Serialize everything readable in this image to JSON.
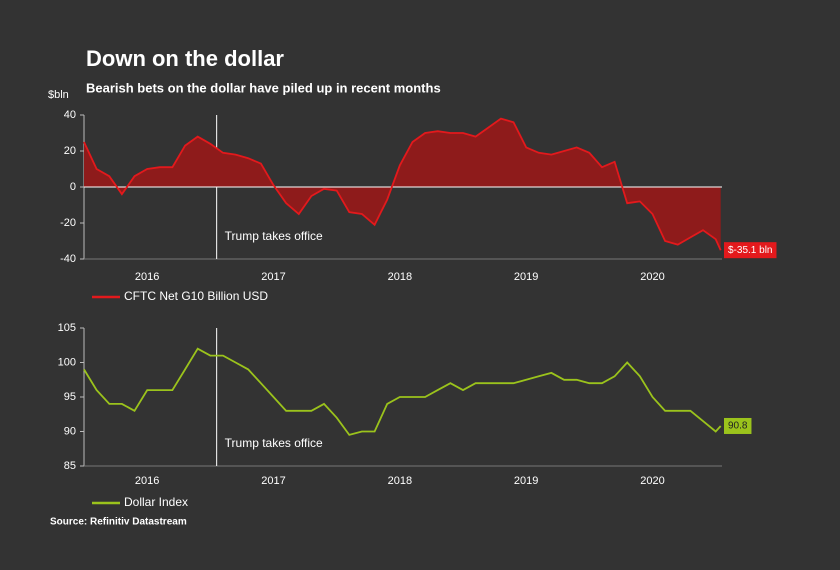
{
  "title": "Down on the dollar",
  "subtitle": "Bearish bets on the dollar have piled up in recent months",
  "source": "Source: Refinitiv Datastream",
  "chart_data": [
    {
      "type": "area",
      "y_label": "$bln",
      "x": [
        2016.0,
        2016.1,
        2016.2,
        2016.3,
        2016.4,
        2016.5,
        2016.6,
        2016.7,
        2016.8,
        2016.9,
        2017.0,
        2017.1,
        2017.2,
        2017.3,
        2017.4,
        2017.5,
        2017.6,
        2017.7,
        2017.8,
        2017.9,
        2018.0,
        2018.1,
        2018.2,
        2018.3,
        2018.4,
        2018.5,
        2018.6,
        2018.7,
        2018.8,
        2018.9,
        2019.0,
        2019.1,
        2019.2,
        2019.3,
        2019.4,
        2019.5,
        2019.6,
        2019.7,
        2019.8,
        2019.9,
        2020.0,
        2020.1,
        2020.2,
        2020.3,
        2020.4,
        2020.5,
        2020.6,
        2020.7,
        2020.8,
        2020.9,
        2021.0,
        2021.04
      ],
      "xlim": [
        2016,
        2021.05
      ],
      "xticks": [
        {
          "value": 2016.5,
          "label": "2016"
        },
        {
          "value": 2017.5,
          "label": "2017"
        },
        {
          "value": 2018.5,
          "label": "2018"
        },
        {
          "value": 2019.5,
          "label": "2019"
        },
        {
          "value": 2020.5,
          "label": "2020"
        }
      ],
      "ylim": [
        -40,
        40
      ],
      "yticks": [
        -40,
        -20,
        0,
        20,
        40
      ],
      "annotation": {
        "text": "Trump takes office",
        "x": 2017.05
      },
      "series": [
        {
          "name": "CFTC Net G10 Billion USD",
          "color": "#e3191c",
          "fill": "#8e1b1b",
          "values": [
            25,
            10,
            6,
            -4,
            6,
            10,
            11,
            11,
            23,
            28,
            24,
            19,
            18,
            16,
            13,
            1,
            -9,
            -15,
            -5,
            -1,
            -2,
            -14,
            -15,
            -21,
            -7,
            12,
            25,
            30,
            31,
            30,
            30,
            28,
            33,
            38,
            36,
            22,
            19,
            18,
            20,
            22,
            19,
            11,
            14,
            -9,
            -8,
            -15,
            -30,
            -32,
            -28,
            -24,
            -29,
            -35.1
          ],
          "value_labels": [
            null,
            null,
            null,
            null,
            null,
            null,
            null,
            null,
            null,
            null,
            null,
            null,
            null,
            null,
            null,
            null,
            null,
            null,
            null,
            null,
            null,
            null,
            null,
            null,
            null,
            null,
            null,
            null,
            null,
            null,
            null,
            null,
            null,
            null,
            null,
            null,
            null,
            null,
            null,
            null,
            null,
            null,
            null,
            null,
            null,
            null,
            null,
            null,
            null,
            null,
            null,
            "$-35.1 bln"
          ]
        }
      ]
    },
    {
      "type": "line",
      "x": [
        2016.0,
        2016.1,
        2016.2,
        2016.3,
        2016.4,
        2016.5,
        2016.6,
        2016.7,
        2016.8,
        2016.9,
        2017.0,
        2017.1,
        2017.2,
        2017.3,
        2017.4,
        2017.5,
        2017.6,
        2017.7,
        2017.8,
        2017.9,
        2018.0,
        2018.1,
        2018.2,
        2018.3,
        2018.4,
        2018.5,
        2018.6,
        2018.7,
        2018.8,
        2018.9,
        2019.0,
        2019.1,
        2019.2,
        2019.3,
        2019.4,
        2019.5,
        2019.6,
        2019.7,
        2019.8,
        2019.9,
        2020.0,
        2020.1,
        2020.2,
        2020.3,
        2020.4,
        2020.5,
        2020.6,
        2020.7,
        2020.8,
        2020.9,
        2021.0,
        2021.04
      ],
      "xlim": [
        2016,
        2021.05
      ],
      "xticks": [
        {
          "value": 2016.5,
          "label": "2016"
        },
        {
          "value": 2017.5,
          "label": "2017"
        },
        {
          "value": 2018.5,
          "label": "2018"
        },
        {
          "value": 2019.5,
          "label": "2019"
        },
        {
          "value": 2020.5,
          "label": "2020"
        }
      ],
      "ylim": [
        85,
        105
      ],
      "yticks": [
        85,
        90,
        95,
        100,
        105
      ],
      "annotation": {
        "text": "Trump takes office",
        "x": 2017.05
      },
      "series": [
        {
          "name": "Dollar Index",
          "color": "#9bc31c",
          "values": [
            99,
            96,
            94,
            94,
            93,
            96,
            96,
            96,
            99,
            102,
            101,
            101,
            100,
            99,
            97,
            95,
            93,
            93,
            93,
            94,
            92,
            89.5,
            90,
            90,
            94,
            95,
            95,
            95,
            96,
            97,
            96,
            97,
            97,
            97,
            97,
            97.5,
            98,
            98.5,
            97.5,
            97.5,
            97,
            97,
            98,
            100,
            98,
            95,
            93,
            93,
            93,
            91.5,
            90,
            90.8
          ]
        }
      ]
    }
  ]
}
